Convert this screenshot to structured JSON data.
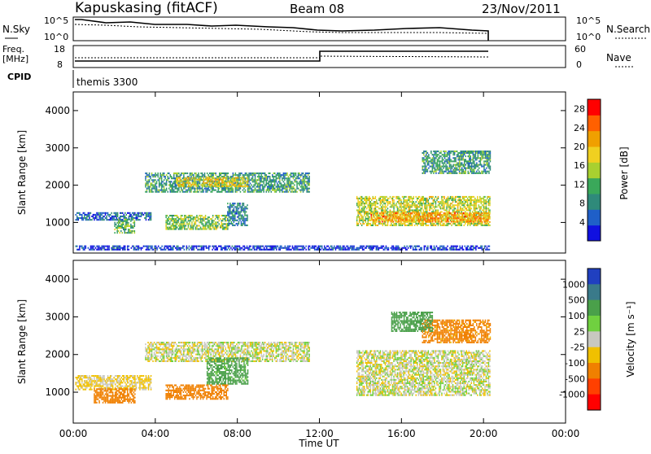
{
  "header": {
    "station": "Kapuskasing (fitACF)",
    "beam": "Beam 08",
    "date": "23/Nov/2011"
  },
  "noise_panel": {
    "left_label": "N.Sky",
    "right_label": "N.Search",
    "left_ticks": [
      "10^5",
      "10^0"
    ],
    "right_ticks": [
      "10^5",
      "10^0"
    ]
  },
  "freq_panel": {
    "left_label_1": "Freq.",
    "left_label_2": "[MHz]",
    "right_label": "Nave",
    "left_ticks": [
      "18",
      "8"
    ],
    "right_ticks": [
      "60",
      "0"
    ]
  },
  "cpid": {
    "label": "CPID",
    "mode": "themis 3300"
  },
  "chart_data": [
    {
      "type": "heatmap",
      "panel": "power",
      "ylabel": "Slant Range [km]",
      "xlabel": "Time UT",
      "x_ticks": [
        "00:00",
        "04:00",
        "08:00",
        "12:00",
        "16:00",
        "20:00",
        "00:00"
      ],
      "y_ticks": [
        1000,
        2000,
        3000,
        4000
      ],
      "ylim": [
        180,
        4500
      ],
      "xlim_hours": [
        0,
        24
      ],
      "colorbar_label": "Power [dB]",
      "colorbar_ticks": [
        4,
        8,
        12,
        16,
        20,
        24,
        28
      ],
      "colorbar_range": [
        0,
        30
      ],
      "colors": [
        "#1010e0",
        "#1f5fc8",
        "#2f8a7a",
        "#3aa85a",
        "#a8d030",
        "#f0d020",
        "#f0a000",
        "#ff6000",
        "#ff0000"
      ],
      "regions": [
        {
          "t0": 0.1,
          "t1": 3.8,
          "r0": 1050,
          "r1": 1250,
          "level": 6
        },
        {
          "t0": 2.0,
          "t1": 3.0,
          "r0": 700,
          "r1": 1100,
          "level": 12
        },
        {
          "t0": 3.5,
          "t1": 11.5,
          "r0": 1800,
          "r1": 2300,
          "level": 10
        },
        {
          "t0": 5.0,
          "t1": 8.5,
          "r0": 1950,
          "r1": 2200,
          "level": 18
        },
        {
          "t0": 4.5,
          "t1": 7.5,
          "r0": 800,
          "r1": 1200,
          "level": 14
        },
        {
          "t0": 7.5,
          "t1": 8.5,
          "r0": 900,
          "r1": 1500,
          "level": 8
        },
        {
          "t0": 13.8,
          "t1": 20.3,
          "r0": 900,
          "r1": 1700,
          "level": 16
        },
        {
          "t0": 14.5,
          "t1": 20.3,
          "r0": 1000,
          "r1": 1250,
          "level": 22
        },
        {
          "t0": 17.0,
          "t1": 20.3,
          "r0": 2300,
          "r1": 2900,
          "level": 10
        },
        {
          "t0": 0.1,
          "t1": 20.3,
          "r0": 250,
          "r1": 350,
          "level": 3
        }
      ]
    },
    {
      "type": "heatmap",
      "panel": "velocity",
      "ylabel": "Slant Range [km]",
      "xlabel": "Time UT",
      "x_ticks": [
        "00:00",
        "04:00",
        "08:00",
        "12:00",
        "16:00",
        "20:00",
        "00:00"
      ],
      "y_ticks": [
        1000,
        2000,
        3000,
        4000
      ],
      "ylim": [
        180,
        4500
      ],
      "xlim_hours": [
        0,
        24
      ],
      "colorbar_label": "Velocity [m s⁻¹]",
      "colorbar_ticks": [
        "1000",
        "500",
        "100",
        "25",
        "-25",
        "-100",
        "-500",
        "-1000"
      ],
      "colors": [
        "#2040c0",
        "#3a7a8a",
        "#4aa04a",
        "#70d040",
        "#c8c8c0",
        "#f0c000",
        "#f08000",
        "#ff4000",
        "#ff0000"
      ],
      "regions": [
        {
          "t0": 0.1,
          "t1": 3.8,
          "r0": 1050,
          "r1": 1450,
          "level": -40
        },
        {
          "t0": 1.0,
          "t1": 3.0,
          "r0": 700,
          "r1": 1100,
          "level": -300
        },
        {
          "t0": 3.5,
          "t1": 11.5,
          "r0": 1800,
          "r1": 2300,
          "level": 0
        },
        {
          "t0": 6.5,
          "t1": 8.5,
          "r0": 1200,
          "r1": 1900,
          "level": 150
        },
        {
          "t0": 4.5,
          "t1": 7.5,
          "r0": 800,
          "r1": 1200,
          "level": -200
        },
        {
          "t0": 13.8,
          "t1": 20.3,
          "r0": 900,
          "r1": 2100,
          "level": 0
        },
        {
          "t0": 17.0,
          "t1": 20.3,
          "r0": 2300,
          "r1": 2900,
          "level": -150
        },
        {
          "t0": 15.5,
          "t1": 17.5,
          "r0": 2600,
          "r1": 3100,
          "level": 200
        }
      ]
    }
  ]
}
